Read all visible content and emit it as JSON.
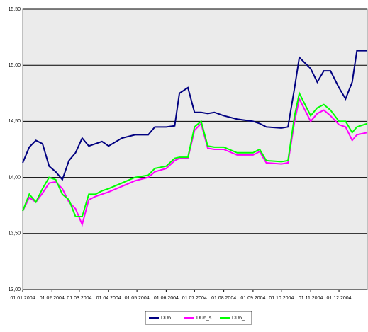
{
  "chart_data": {
    "type": "line",
    "x": [
      "2004-01-01",
      "2004-01-08",
      "2004-01-15",
      "2004-01-22",
      "2004-01-29",
      "2004-02-05",
      "2004-02-12",
      "2004-02-19",
      "2004-02-26",
      "2004-03-04",
      "2004-03-11",
      "2004-03-18",
      "2004-03-25",
      "2004-04-01",
      "2004-04-15",
      "2004-04-29",
      "2004-05-13",
      "2004-05-20",
      "2004-06-01",
      "2004-06-10",
      "2004-06-15",
      "2004-06-24",
      "2004-07-01",
      "2004-07-08",
      "2004-07-15",
      "2004-07-22",
      "2004-08-01",
      "2004-08-15",
      "2004-09-01",
      "2004-09-08",
      "2004-09-15",
      "2004-10-01",
      "2004-10-08",
      "2004-10-15",
      "2004-10-20",
      "2004-11-01",
      "2004-11-08",
      "2004-11-15",
      "2004-11-22",
      "2004-12-01",
      "2004-12-08",
      "2004-12-15",
      "2004-12-20",
      "2004-12-31"
    ],
    "series": [
      {
        "name": "DU6",
        "color": "#000080",
        "values": [
          14.13,
          14.27,
          14.33,
          14.3,
          14.1,
          14.05,
          13.98,
          14.15,
          14.22,
          14.35,
          14.28,
          14.3,
          14.32,
          14.28,
          14.35,
          14.38,
          14.38,
          14.45,
          14.45,
          14.46,
          14.75,
          14.8,
          14.58,
          14.58,
          14.57,
          14.58,
          14.55,
          14.52,
          14.5,
          14.48,
          14.45,
          14.44,
          14.45,
          14.8,
          15.07,
          14.97,
          14.85,
          14.95,
          14.95,
          14.8,
          14.7,
          14.85,
          15.13,
          15.13
        ]
      },
      {
        "name": "DU6_s",
        "color": "#ff00ff",
        "values": [
          13.7,
          13.82,
          13.78,
          13.86,
          13.95,
          13.96,
          13.9,
          13.78,
          13.72,
          13.58,
          13.8,
          13.83,
          13.85,
          13.87,
          13.92,
          13.97,
          14.0,
          14.05,
          14.08,
          14.15,
          14.17,
          14.17,
          14.42,
          14.48,
          14.26,
          14.25,
          14.25,
          14.2,
          14.2,
          14.23,
          14.13,
          14.12,
          14.13,
          14.5,
          14.7,
          14.5,
          14.57,
          14.6,
          14.55,
          14.47,
          14.45,
          14.33,
          14.38,
          14.4
        ]
      },
      {
        "name": "DU6_i",
        "color": "#00ff00",
        "values": [
          13.7,
          13.85,
          13.78,
          13.9,
          14.0,
          13.98,
          13.85,
          13.8,
          13.65,
          13.65,
          13.85,
          13.85,
          13.88,
          13.9,
          13.95,
          14.0,
          14.02,
          14.08,
          14.1,
          14.17,
          14.18,
          14.18,
          14.45,
          14.5,
          14.28,
          14.27,
          14.27,
          14.22,
          14.22,
          14.25,
          14.15,
          14.14,
          14.15,
          14.55,
          14.75,
          14.55,
          14.62,
          14.65,
          14.6,
          14.5,
          14.5,
          14.4,
          14.45,
          14.48
        ]
      }
    ],
    "xlim": [
      "2004-01-01",
      "2004-12-31"
    ],
    "xticks": [
      {
        "value": "2004-01-01",
        "label": "01.01.2004"
      },
      {
        "value": "2004-02-01",
        "label": "01.02.2004"
      },
      {
        "value": "2004-03-01",
        "label": "01.03.2004"
      },
      {
        "value": "2004-04-01",
        "label": "01.04.2004"
      },
      {
        "value": "2004-05-01",
        "label": "01.05.2004"
      },
      {
        "value": "2004-06-01",
        "label": "01.06.2004"
      },
      {
        "value": "2004-07-01",
        "label": "01.07.2004"
      },
      {
        "value": "2004-08-01",
        "label": "01.08.2004"
      },
      {
        "value": "2004-09-01",
        "label": "01.09.2004"
      },
      {
        "value": "2004-10-01",
        "label": "01.10.2004"
      },
      {
        "value": "2004-11-01",
        "label": "01.11.2004"
      },
      {
        "value": "2004-12-01",
        "label": "01.12.2004"
      }
    ],
    "ylim": [
      13,
      15.5
    ],
    "yticks": [
      {
        "value": 13,
        "label": "13,00"
      },
      {
        "value": 13.5,
        "label": "13,50"
      },
      {
        "value": 14,
        "label": "14,00"
      },
      {
        "value": 14.5,
        "label": "14,50"
      },
      {
        "value": 15,
        "label": "15,00"
      },
      {
        "value": 15.5,
        "label": "15,50"
      }
    ],
    "grid": true
  }
}
